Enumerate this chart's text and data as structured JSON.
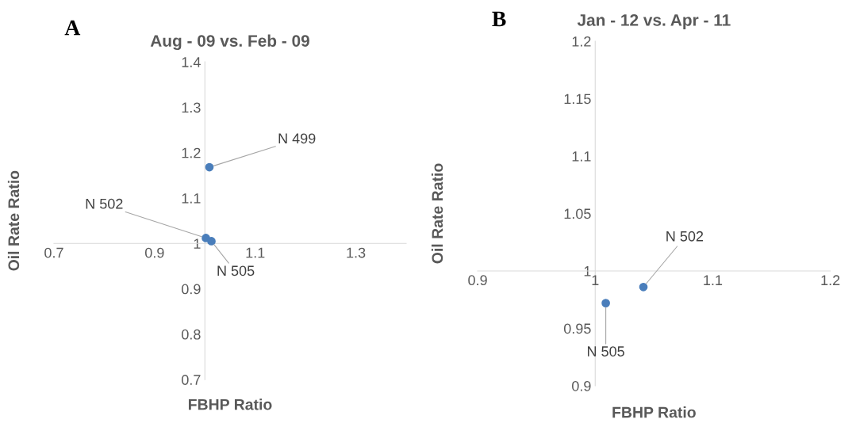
{
  "chart_data": [
    {
      "type": "scatter",
      "title": "Aug - 09 vs. Feb - 09",
      "xlabel": "FBHP Ratio",
      "ylabel": "Oil Rate Ratio",
      "marker": "circle",
      "grid": false,
      "x": [
        1.009,
        1.002,
        1.013
      ],
      "series": [
        {
          "color": "#4a7ebb",
          "values": [
            1.168,
            1.012,
            1.005
          ]
        }
      ],
      "xlim": [
        0.7,
        1.4
      ],
      "xticks": [
        0.7,
        0.9,
        1.1,
        1.3
      ],
      "ylim": [
        0.7,
        1.4
      ],
      "yticks": [
        0.7,
        0.8,
        0.9,
        {
          "value": 1.0,
          "label": "1"
        },
        1.1,
        1.2,
        1.3,
        1.4
      ],
      "annotations": [
        "A",
        {
          "text": "N 499",
          "x": 1.009,
          "y": 1.168
        },
        {
          "text": "N 502",
          "x": 1.002,
          "y": 1.012
        },
        {
          "text": "N 505",
          "x": 1.013,
          "y": 1.005
        }
      ]
    },
    {
      "type": "scatter",
      "title": "Jan - 12 vs. Apr - 11",
      "xlabel": "FBHP Ratio",
      "ylabel": "Oil Rate Ratio",
      "marker": "circle",
      "grid": false,
      "x": [
        1.041,
        1.009
      ],
      "series": [
        {
          "color": "#4a7ebb",
          "values": [
            0.986,
            0.972
          ]
        }
      ],
      "xlim": [
        0.9,
        1.2
      ],
      "xticks": [
        0.9,
        {
          "value": 1.0,
          "label": "1"
        },
        1.1,
        1.2
      ],
      "ylim": [
        0.9,
        1.2
      ],
      "yticks": [
        0.9,
        0.95,
        {
          "value": 1.0,
          "label": "1"
        },
        1.05,
        1.1,
        1.15,
        1.2
      ],
      "annotations": [
        "B",
        {
          "text": "N 502",
          "x": 1.041,
          "y": 0.986
        },
        {
          "text": "N 505",
          "x": 1.009,
          "y": 0.972
        }
      ]
    }
  ]
}
